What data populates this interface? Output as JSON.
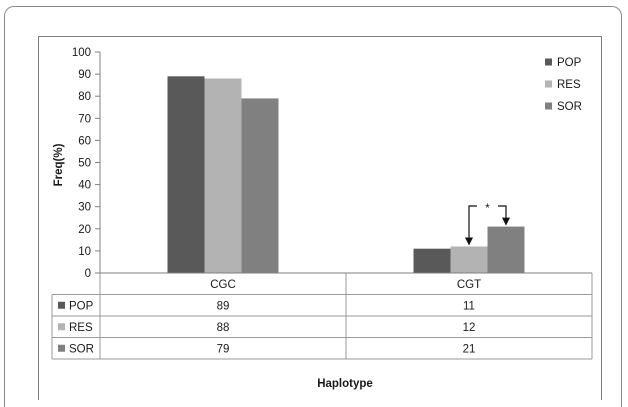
{
  "chart_data": {
    "type": "bar",
    "categories": [
      "CGC",
      "CGT"
    ],
    "series": [
      {
        "name": "POP",
        "values": [
          89,
          11
        ],
        "color": "#595959"
      },
      {
        "name": "RES",
        "values": [
          88,
          12
        ],
        "color": "#b3b3b3"
      },
      {
        "name": "SOR",
        "values": [
          79,
          21
        ],
        "color": "#808080"
      }
    ],
    "ylabel": "Freq(%)",
    "xlabel": "Haplotype",
    "ylim": [
      0,
      100
    ],
    "yticks": [
      0,
      10,
      20,
      30,
      40,
      50,
      60,
      70,
      80,
      90,
      100
    ],
    "legend_position": "right",
    "data_table": true,
    "annotations": [
      {
        "text": "*",
        "category": "CGT",
        "between": [
          "RES",
          "SOR"
        ],
        "kind": "significance-bracket"
      }
    ]
  }
}
